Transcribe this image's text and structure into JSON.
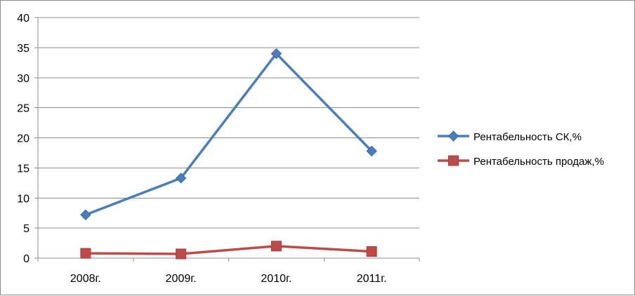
{
  "chart_data": {
    "type": "line",
    "categories": [
      "2008г.",
      "2009г.",
      "2010г.",
      "2011г."
    ],
    "series": [
      {
        "name": "Рентабельность СК,%",
        "values": [
          7.2,
          13.3,
          34.0,
          17.8
        ],
        "color": "#4a7ebb",
        "marker": "diamond"
      },
      {
        "name": "Рентабельность продаж,%",
        "values": [
          0.8,
          0.7,
          2.0,
          1.1
        ],
        "color": "#be4b48",
        "marker": "square"
      }
    ],
    "yticks": [
      "0",
      "5",
      "10",
      "15",
      "20",
      "25",
      "30",
      "35",
      "40"
    ],
    "ylim": [
      0,
      40
    ],
    "grid": true,
    "legend_position": "right"
  }
}
